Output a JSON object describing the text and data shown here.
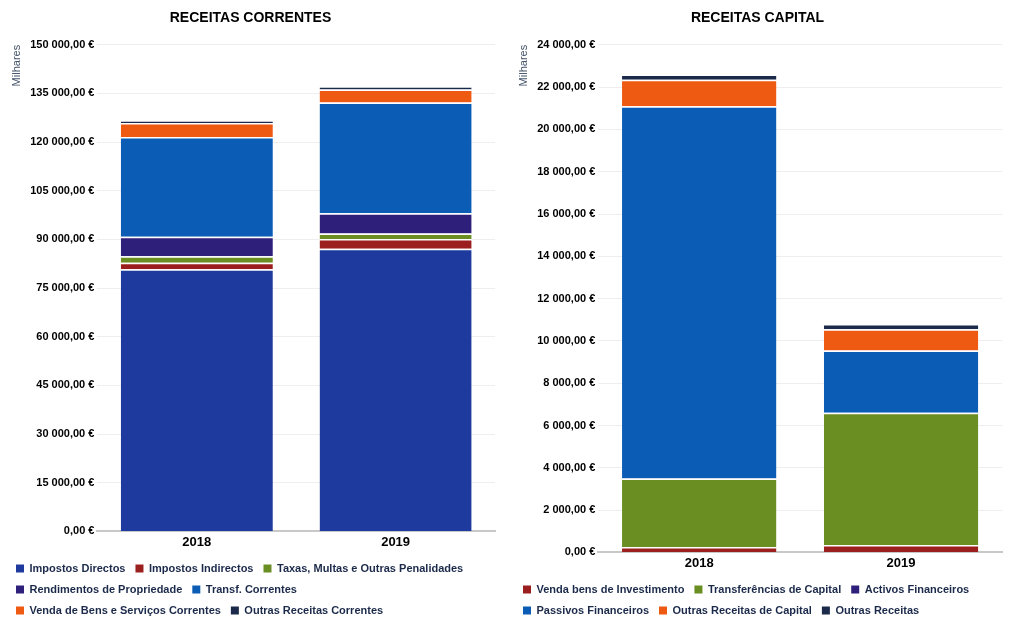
{
  "chart_data": [
    {
      "type": "bar",
      "stacked": true,
      "title": "RECEITAS CORRENTES",
      "ylabel": "Milhares",
      "categories": [
        "2018",
        "2019"
      ],
      "series": [
        {
          "name": "Impostos Directos",
          "color": "#1f3a9e",
          "values": [
            80800,
            87100
          ]
        },
        {
          "name": "Impostos Indirectos",
          "color": "#9c1f1f",
          "values": [
            2000,
            3000
          ]
        },
        {
          "name": "Taxas, Multas e Outras Penalidades",
          "color": "#6b8e23",
          "values": [
            2000,
            1700
          ]
        },
        {
          "name": "Rendimentos de Propriedade",
          "color": "#2e1f7a",
          "values": [
            6000,
            6300
          ]
        },
        {
          "name": "Transf. Correntes",
          "color": "#0b5cb5",
          "values": [
            30800,
            34100
          ]
        },
        {
          "name": "Venda de Bens e Serviços Correntes",
          "color": "#ee5a12",
          "values": [
            4300,
            4000
          ]
        },
        {
          "name": "Outras Receitas Correntes",
          "color": "#1b2a4a",
          "values": [
            700,
            1000
          ]
        }
      ],
      "ylim": [
        0,
        150000
      ],
      "yticks": [
        {
          "value": 0,
          "label": "0,00 €"
        },
        {
          "value": 15000,
          "label": "15 000,00 €"
        },
        {
          "value": 30000,
          "label": "30 000,00 €"
        },
        {
          "value": 45000,
          "label": "45 000,00 €"
        },
        {
          "value": 60000,
          "label": "60 000,00 €"
        },
        {
          "value": 75000,
          "label": "75 000,00 €"
        },
        {
          "value": 90000,
          "label": "90 000,00 €"
        },
        {
          "value": 105000,
          "label": "105 000,00 €"
        },
        {
          "value": 120000,
          "label": "120 000,00 €"
        },
        {
          "value": 135000,
          "label": "135 000,00 €"
        },
        {
          "value": 150000,
          "label": "150 000,00 €"
        }
      ],
      "grid": "y",
      "legend": "bottom"
    },
    {
      "type": "bar",
      "stacked": true,
      "title": "RECEITAS CAPITAL",
      "ylabel": "Milhares",
      "categories": [
        "2018",
        "2019"
      ],
      "series": [
        {
          "name": "Venda bens de Investimento",
          "color": "#9c1f1f",
          "values": [
            250,
            350
          ]
        },
        {
          "name": "Transferências de Capital",
          "color": "#6b8e23",
          "values": [
            3250,
            6250
          ]
        },
        {
          "name": "Activos Financeiros",
          "color": "#2e1f7a",
          "values": [
            0,
            0
          ]
        },
        {
          "name": "Passivos Financeiros",
          "color": "#0b5cb5",
          "values": [
            17600,
            2950
          ]
        },
        {
          "name": "Outras Receitas de Capital",
          "color": "#ee5a12",
          "values": [
            1250,
            1000
          ]
        },
        {
          "name": "Outras Receitas",
          "color": "#1b2a4a",
          "values": [
            250,
            250
          ]
        }
      ],
      "ylim": [
        0,
        24000
      ],
      "yticks": [
        {
          "value": 0,
          "label": "0,00 €"
        },
        {
          "value": 2000,
          "label": "2 000,00 €"
        },
        {
          "value": 4000,
          "label": "4 000,00 €"
        },
        {
          "value": 6000,
          "label": "6 000,00 €"
        },
        {
          "value": 8000,
          "label": "8 000,00 €"
        },
        {
          "value": 10000,
          "label": "10 000,00 €"
        },
        {
          "value": 12000,
          "label": "12 000,00 €"
        },
        {
          "value": 14000,
          "label": "14 000,00 €"
        },
        {
          "value": 16000,
          "label": "16 000,00 €"
        },
        {
          "value": 18000,
          "label": "18 000,00 €"
        },
        {
          "value": 20000,
          "label": "20 000,00 €"
        },
        {
          "value": 22000,
          "label": "22 000,00 €"
        },
        {
          "value": 24000,
          "label": "24 000,00 €"
        }
      ],
      "grid": "y",
      "legend": "bottom"
    }
  ]
}
